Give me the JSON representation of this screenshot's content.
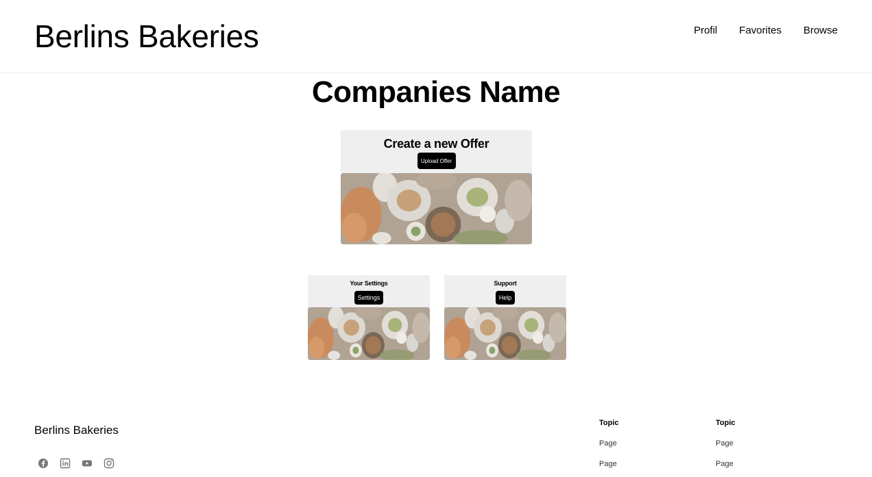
{
  "header": {
    "brand": "Berlins Bakeries",
    "nav": [
      "Profil",
      "Favorites",
      "Browse"
    ]
  },
  "main": {
    "company_name": "Companies Name",
    "offer_card": {
      "title": "Create a new Offer",
      "button": "Upload Offer"
    },
    "settings_card": {
      "title": "Your Settings",
      "button": "Settings"
    },
    "support_card": {
      "title": "Support",
      "button": "Help"
    }
  },
  "footer": {
    "brand": "Berlins Bakeries",
    "socials": [
      "facebook-icon",
      "linkedin-icon",
      "youtube-icon",
      "instagram-icon"
    ],
    "columns": [
      {
        "topic": "Topic",
        "pages": [
          "Page",
          "Page"
        ]
      },
      {
        "topic": "Topic",
        "pages": [
          "Page",
          "Page"
        ]
      }
    ]
  },
  "colors": {
    "card_bg": "#efefef",
    "button_bg": "#000000",
    "button_text": "#ffffff"
  }
}
